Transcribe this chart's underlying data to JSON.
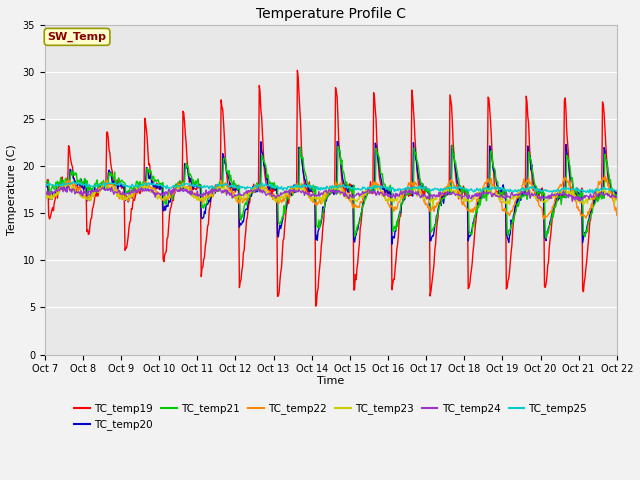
{
  "title": "Temperature Profile C",
  "xlabel": "Time",
  "ylabel": "Temperature (C)",
  "ylim": [
    0,
    35
  ],
  "yticks": [
    0,
    5,
    10,
    15,
    20,
    25,
    30,
    35
  ],
  "x_labels": [
    "Oct 7",
    "Oct 8",
    "Oct 9",
    "Oct 10",
    "Oct 11",
    "Oct 12",
    "Oct 13",
    "Oct 14",
    "Oct 15",
    "Oct 16",
    "Oct 17",
    "Oct 18",
    "Oct 19",
    "Oct 20",
    "Oct 21",
    "Oct 22"
  ],
  "legend_entries": [
    {
      "label": "TC_temp19",
      "color": "#ff0000"
    },
    {
      "label": "TC_temp20",
      "color": "#0000cc"
    },
    {
      "label": "TC_temp21",
      "color": "#00cc00"
    },
    {
      "label": "TC_temp22",
      "color": "#ff8800"
    },
    {
      "label": "TC_temp23",
      "color": "#cccc00"
    },
    {
      "label": "TC_temp24",
      "color": "#9933cc"
    },
    {
      "label": "TC_temp25",
      "color": "#00cccc"
    }
  ],
  "sw_temp_box_color": "#ffffcc",
  "sw_temp_border_color": "#999900",
  "sw_temp_text_color": "#880000",
  "plot_bg_color": "#e8e8e8",
  "fig_bg_color": "#f2f2f2",
  "grid_color": "#ffffff",
  "title_fontsize": 10,
  "axis_label_fontsize": 8,
  "tick_fontsize": 7,
  "legend_fontsize": 7.5
}
